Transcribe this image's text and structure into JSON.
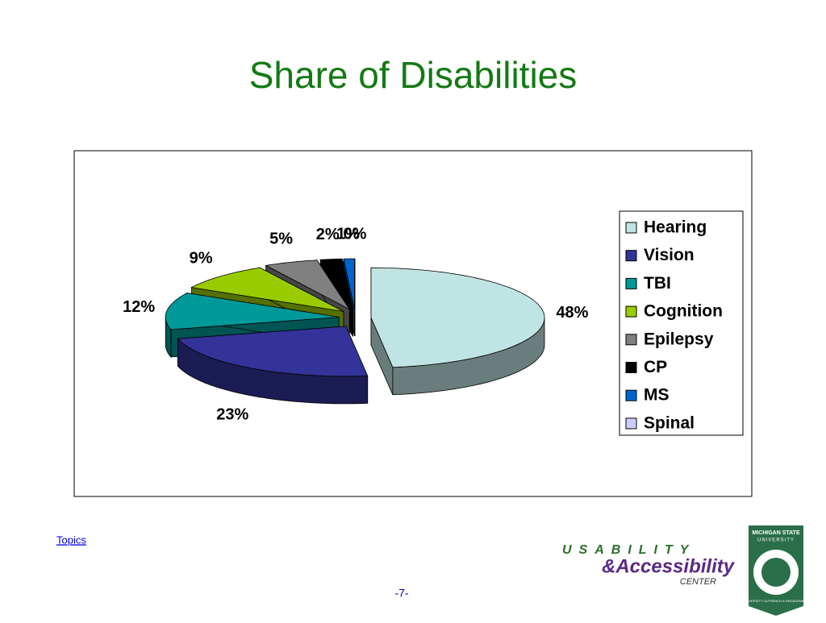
{
  "chart_data": {
    "type": "pie3d",
    "title": "Share of Disabilities",
    "categories": [
      "Hearing",
      "Vision",
      "TBI",
      "Cognition",
      "Epilepsy",
      "CP",
      "MS",
      "Spinal"
    ],
    "values": [
      48,
      23,
      12,
      9,
      5,
      2,
      1,
      0
    ],
    "value_labels": [
      "48%",
      "23%",
      "12%",
      "9%",
      "5%",
      "2%",
      "1%",
      "0%"
    ],
    "colors": [
      "#c0e4e4",
      "#333399",
      "#009999",
      "#99cc00",
      "#808080",
      "#000000",
      "#0066cc",
      "#ccccff"
    ],
    "legend": "right"
  },
  "footer": {
    "link": "Topics",
    "page": "-7-",
    "logo": {
      "usability": "USABILITY",
      "accessibility": "&Accessibility",
      "center": "CENTER",
      "msu": "MICHIGAN STATE",
      "msu2": "UNIVERSITY",
      "outreach": "UNIVERSITY OUTREACH & ENGAGEMENT"
    }
  }
}
